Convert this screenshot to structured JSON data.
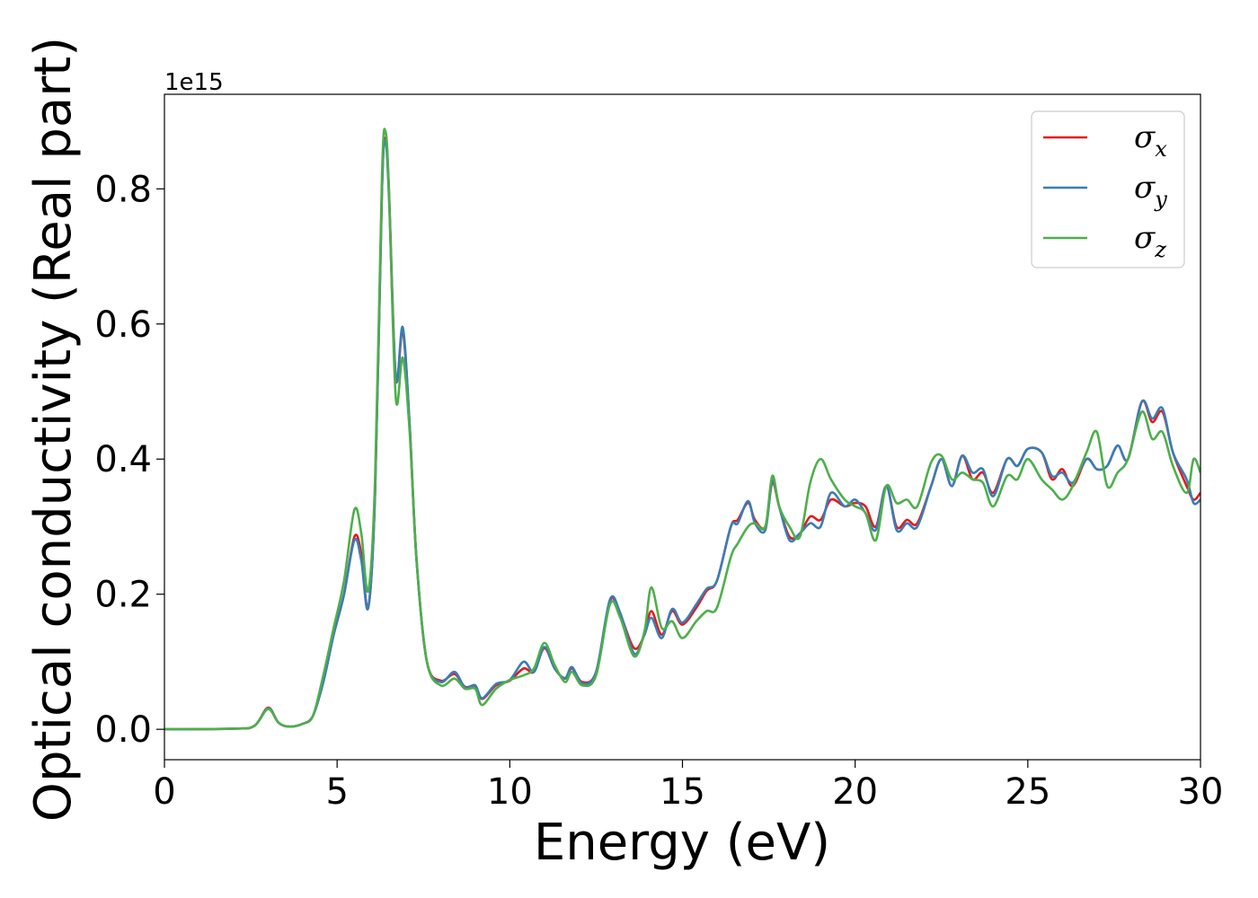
{
  "chart_data": {
    "type": "line",
    "xlabel": "Energy (eV)",
    "ylabel": "Optical conductivity (Real part)",
    "y_offset_text": "1e15",
    "y_scale": 1000000000000000.0,
    "xlim": [
      0,
      30
    ],
    "ylim": [
      -0.045,
      0.94
    ],
    "xticks": [
      0,
      5,
      10,
      15,
      20,
      25,
      30
    ],
    "xtick_labels": [
      "0",
      "5",
      "10",
      "15",
      "20",
      "25",
      "30"
    ],
    "yticks": [
      0.0,
      0.2,
      0.4,
      0.6,
      0.8
    ],
    "ytick_labels": [
      "0.0",
      "0.2",
      "0.4",
      "0.6",
      "0.8"
    ],
    "grid": false,
    "legend_position": "top-right",
    "series": [
      {
        "name": "σx",
        "symbol": "σ",
        "subscript": "x",
        "color": "#e41a1c",
        "points": [
          [
            0,
            0
          ],
          [
            2,
            0.001
          ],
          [
            2.6,
            0.005
          ],
          [
            3,
            0.032
          ],
          [
            3.3,
            0.01
          ],
          [
            3.6,
            0.004
          ],
          [
            4,
            0.008
          ],
          [
            4.3,
            0.02
          ],
          [
            4.6,
            0.07
          ],
          [
            4.9,
            0.14
          ],
          [
            5.2,
            0.2
          ],
          [
            5.5,
            0.285
          ],
          [
            5.7,
            0.26
          ],
          [
            5.9,
            0.18
          ],
          [
            6.1,
            0.35
          ],
          [
            6.3,
            0.8
          ],
          [
            6.4,
            0.875
          ],
          [
            6.5,
            0.8
          ],
          [
            6.7,
            0.52
          ],
          [
            6.9,
            0.59
          ],
          [
            7.1,
            0.45
          ],
          [
            7.3,
            0.25
          ],
          [
            7.6,
            0.1
          ],
          [
            8,
            0.072
          ],
          [
            8.4,
            0.082
          ],
          [
            8.7,
            0.063
          ],
          [
            9,
            0.064
          ],
          [
            9.2,
            0.045
          ],
          [
            9.6,
            0.065
          ],
          [
            10,
            0.072
          ],
          [
            10.4,
            0.09
          ],
          [
            10.7,
            0.085
          ],
          [
            11,
            0.12
          ],
          [
            11.3,
            0.09
          ],
          [
            11.6,
            0.075
          ],
          [
            11.8,
            0.09
          ],
          [
            12.1,
            0.07
          ],
          [
            12.5,
            0.085
          ],
          [
            12.9,
            0.19
          ],
          [
            13.2,
            0.17
          ],
          [
            13.6,
            0.12
          ],
          [
            13.9,
            0.14
          ],
          [
            14.1,
            0.175
          ],
          [
            14.4,
            0.14
          ],
          [
            14.7,
            0.175
          ],
          [
            15,
            0.155
          ],
          [
            15.4,
            0.18
          ],
          [
            15.7,
            0.205
          ],
          [
            16,
            0.22
          ],
          [
            16.4,
            0.3
          ],
          [
            16.6,
            0.31
          ],
          [
            16.9,
            0.335
          ],
          [
            17.1,
            0.31
          ],
          [
            17.4,
            0.3
          ],
          [
            17.6,
            0.365
          ],
          [
            17.8,
            0.33
          ],
          [
            18.1,
            0.285
          ],
          [
            18.4,
            0.29
          ],
          [
            18.7,
            0.315
          ],
          [
            19,
            0.31
          ],
          [
            19.3,
            0.34
          ],
          [
            19.7,
            0.33
          ],
          [
            20,
            0.335
          ],
          [
            20.3,
            0.33
          ],
          [
            20.6,
            0.3
          ],
          [
            20.9,
            0.36
          ],
          [
            21.2,
            0.3
          ],
          [
            21.5,
            0.31
          ],
          [
            21.8,
            0.305
          ],
          [
            22.2,
            0.36
          ],
          [
            22.5,
            0.4
          ],
          [
            22.8,
            0.36
          ],
          [
            23.1,
            0.405
          ],
          [
            23.4,
            0.37
          ],
          [
            23.7,
            0.38
          ],
          [
            24,
            0.35
          ],
          [
            24.4,
            0.4
          ],
          [
            24.7,
            0.39
          ],
          [
            25,
            0.415
          ],
          [
            25.4,
            0.41
          ],
          [
            25.7,
            0.37
          ],
          [
            26,
            0.385
          ],
          [
            26.3,
            0.36
          ],
          [
            26.7,
            0.4
          ],
          [
            27,
            0.385
          ],
          [
            27.3,
            0.39
          ],
          [
            27.6,
            0.42
          ],
          [
            27.9,
            0.4
          ],
          [
            28.3,
            0.485
          ],
          [
            28.6,
            0.455
          ],
          [
            28.9,
            0.47
          ],
          [
            29.2,
            0.41
          ],
          [
            29.6,
            0.36
          ],
          [
            29.8,
            0.34
          ],
          [
            30,
            0.35
          ]
        ]
      },
      {
        "name": "σy",
        "symbol": "σ",
        "subscript": "y",
        "color": "#377eb8",
        "points": [
          [
            0,
            0
          ],
          [
            2,
            0.001
          ],
          [
            2.6,
            0.005
          ],
          [
            3,
            0.031
          ],
          [
            3.3,
            0.01
          ],
          [
            3.6,
            0.004
          ],
          [
            4,
            0.008
          ],
          [
            4.3,
            0.02
          ],
          [
            4.6,
            0.07
          ],
          [
            4.9,
            0.14
          ],
          [
            5.2,
            0.2
          ],
          [
            5.5,
            0.28
          ],
          [
            5.7,
            0.25
          ],
          [
            5.9,
            0.18
          ],
          [
            6.1,
            0.35
          ],
          [
            6.3,
            0.8
          ],
          [
            6.4,
            0.87
          ],
          [
            6.5,
            0.79
          ],
          [
            6.7,
            0.52
          ],
          [
            6.9,
            0.595
          ],
          [
            7.1,
            0.45
          ],
          [
            7.3,
            0.25
          ],
          [
            7.6,
            0.1
          ],
          [
            8,
            0.07
          ],
          [
            8.4,
            0.085
          ],
          [
            8.7,
            0.062
          ],
          [
            9,
            0.065
          ],
          [
            9.2,
            0.046
          ],
          [
            9.6,
            0.067
          ],
          [
            10,
            0.073
          ],
          [
            10.4,
            0.1
          ],
          [
            10.7,
            0.085
          ],
          [
            11,
            0.122
          ],
          [
            11.3,
            0.09
          ],
          [
            11.6,
            0.076
          ],
          [
            11.8,
            0.092
          ],
          [
            12.1,
            0.068
          ],
          [
            12.5,
            0.085
          ],
          [
            12.9,
            0.192
          ],
          [
            13.2,
            0.172
          ],
          [
            13.6,
            0.112
          ],
          [
            13.9,
            0.14
          ],
          [
            14.1,
            0.165
          ],
          [
            14.4,
            0.135
          ],
          [
            14.7,
            0.178
          ],
          [
            15,
            0.158
          ],
          [
            15.4,
            0.185
          ],
          [
            15.7,
            0.208
          ],
          [
            16,
            0.22
          ],
          [
            16.4,
            0.3
          ],
          [
            16.6,
            0.305
          ],
          [
            16.9,
            0.338
          ],
          [
            17.1,
            0.305
          ],
          [
            17.4,
            0.295
          ],
          [
            17.6,
            0.368
          ],
          [
            17.8,
            0.33
          ],
          [
            18.1,
            0.28
          ],
          [
            18.4,
            0.29
          ],
          [
            18.7,
            0.305
          ],
          [
            19,
            0.3
          ],
          [
            19.3,
            0.35
          ],
          [
            19.7,
            0.33
          ],
          [
            20,
            0.34
          ],
          [
            20.3,
            0.32
          ],
          [
            20.6,
            0.295
          ],
          [
            20.9,
            0.36
          ],
          [
            21.2,
            0.295
          ],
          [
            21.5,
            0.305
          ],
          [
            21.8,
            0.3
          ],
          [
            22.2,
            0.36
          ],
          [
            22.5,
            0.4
          ],
          [
            22.8,
            0.36
          ],
          [
            23.1,
            0.405
          ],
          [
            23.4,
            0.38
          ],
          [
            23.7,
            0.385
          ],
          [
            24,
            0.345
          ],
          [
            24.4,
            0.4
          ],
          [
            24.7,
            0.39
          ],
          [
            25,
            0.415
          ],
          [
            25.4,
            0.41
          ],
          [
            25.7,
            0.375
          ],
          [
            26,
            0.38
          ],
          [
            26.3,
            0.365
          ],
          [
            26.7,
            0.4
          ],
          [
            27,
            0.385
          ],
          [
            27.3,
            0.39
          ],
          [
            27.6,
            0.42
          ],
          [
            27.9,
            0.4
          ],
          [
            28.3,
            0.485
          ],
          [
            28.6,
            0.46
          ],
          [
            28.9,
            0.475
          ],
          [
            29.2,
            0.41
          ],
          [
            29.6,
            0.37
          ],
          [
            29.8,
            0.335
          ],
          [
            30,
            0.34
          ]
        ]
      },
      {
        "name": "σz",
        "symbol": "σ",
        "subscript": "z",
        "color": "#4daf4a",
        "points": [
          [
            0,
            0
          ],
          [
            2,
            0.001
          ],
          [
            2.6,
            0.005
          ],
          [
            3,
            0.03
          ],
          [
            3.3,
            0.01
          ],
          [
            3.6,
            0.004
          ],
          [
            4,
            0.008
          ],
          [
            4.3,
            0.02
          ],
          [
            4.6,
            0.08
          ],
          [
            4.9,
            0.15
          ],
          [
            5.2,
            0.22
          ],
          [
            5.5,
            0.325
          ],
          [
            5.7,
            0.29
          ],
          [
            5.9,
            0.205
          ],
          [
            6.1,
            0.37
          ],
          [
            6.3,
            0.82
          ],
          [
            6.4,
            0.885
          ],
          [
            6.5,
            0.8
          ],
          [
            6.7,
            0.49
          ],
          [
            6.9,
            0.55
          ],
          [
            7.1,
            0.44
          ],
          [
            7.3,
            0.25
          ],
          [
            7.6,
            0.1
          ],
          [
            8,
            0.065
          ],
          [
            8.4,
            0.075
          ],
          [
            8.7,
            0.06
          ],
          [
            9,
            0.06
          ],
          [
            9.2,
            0.036
          ],
          [
            9.6,
            0.06
          ],
          [
            10,
            0.073
          ],
          [
            10.4,
            0.08
          ],
          [
            10.7,
            0.09
          ],
          [
            11,
            0.128
          ],
          [
            11.3,
            0.095
          ],
          [
            11.6,
            0.07
          ],
          [
            11.8,
            0.085
          ],
          [
            12.1,
            0.065
          ],
          [
            12.5,
            0.08
          ],
          [
            12.9,
            0.185
          ],
          [
            13.2,
            0.165
          ],
          [
            13.6,
            0.108
          ],
          [
            13.9,
            0.145
          ],
          [
            14.1,
            0.21
          ],
          [
            14.4,
            0.15
          ],
          [
            14.7,
            0.16
          ],
          [
            15,
            0.135
          ],
          [
            15.4,
            0.16
          ],
          [
            15.7,
            0.175
          ],
          [
            16,
            0.18
          ],
          [
            16.4,
            0.255
          ],
          [
            16.6,
            0.275
          ],
          [
            16.9,
            0.3
          ],
          [
            17.1,
            0.305
          ],
          [
            17.4,
            0.3
          ],
          [
            17.6,
            0.375
          ],
          [
            17.8,
            0.33
          ],
          [
            18.1,
            0.3
          ],
          [
            18.4,
            0.285
          ],
          [
            18.7,
            0.365
          ],
          [
            19,
            0.4
          ],
          [
            19.3,
            0.37
          ],
          [
            19.7,
            0.34
          ],
          [
            20,
            0.33
          ],
          [
            20.3,
            0.32
          ],
          [
            20.6,
            0.28
          ],
          [
            20.9,
            0.36
          ],
          [
            21.2,
            0.335
          ],
          [
            21.5,
            0.34
          ],
          [
            21.8,
            0.33
          ],
          [
            22.2,
            0.395
          ],
          [
            22.5,
            0.405
          ],
          [
            22.8,
            0.37
          ],
          [
            23.1,
            0.38
          ],
          [
            23.4,
            0.37
          ],
          [
            23.7,
            0.365
          ],
          [
            24,
            0.33
          ],
          [
            24.4,
            0.375
          ],
          [
            24.7,
            0.37
          ],
          [
            25,
            0.4
          ],
          [
            25.4,
            0.37
          ],
          [
            25.7,
            0.355
          ],
          [
            26,
            0.34
          ],
          [
            26.3,
            0.36
          ],
          [
            26.7,
            0.41
          ],
          [
            27,
            0.44
          ],
          [
            27.3,
            0.36
          ],
          [
            27.6,
            0.38
          ],
          [
            27.9,
            0.4
          ],
          [
            28.3,
            0.47
          ],
          [
            28.6,
            0.43
          ],
          [
            28.9,
            0.44
          ],
          [
            29.2,
            0.39
          ],
          [
            29.6,
            0.35
          ],
          [
            29.8,
            0.4
          ],
          [
            30,
            0.38
          ]
        ]
      }
    ]
  }
}
